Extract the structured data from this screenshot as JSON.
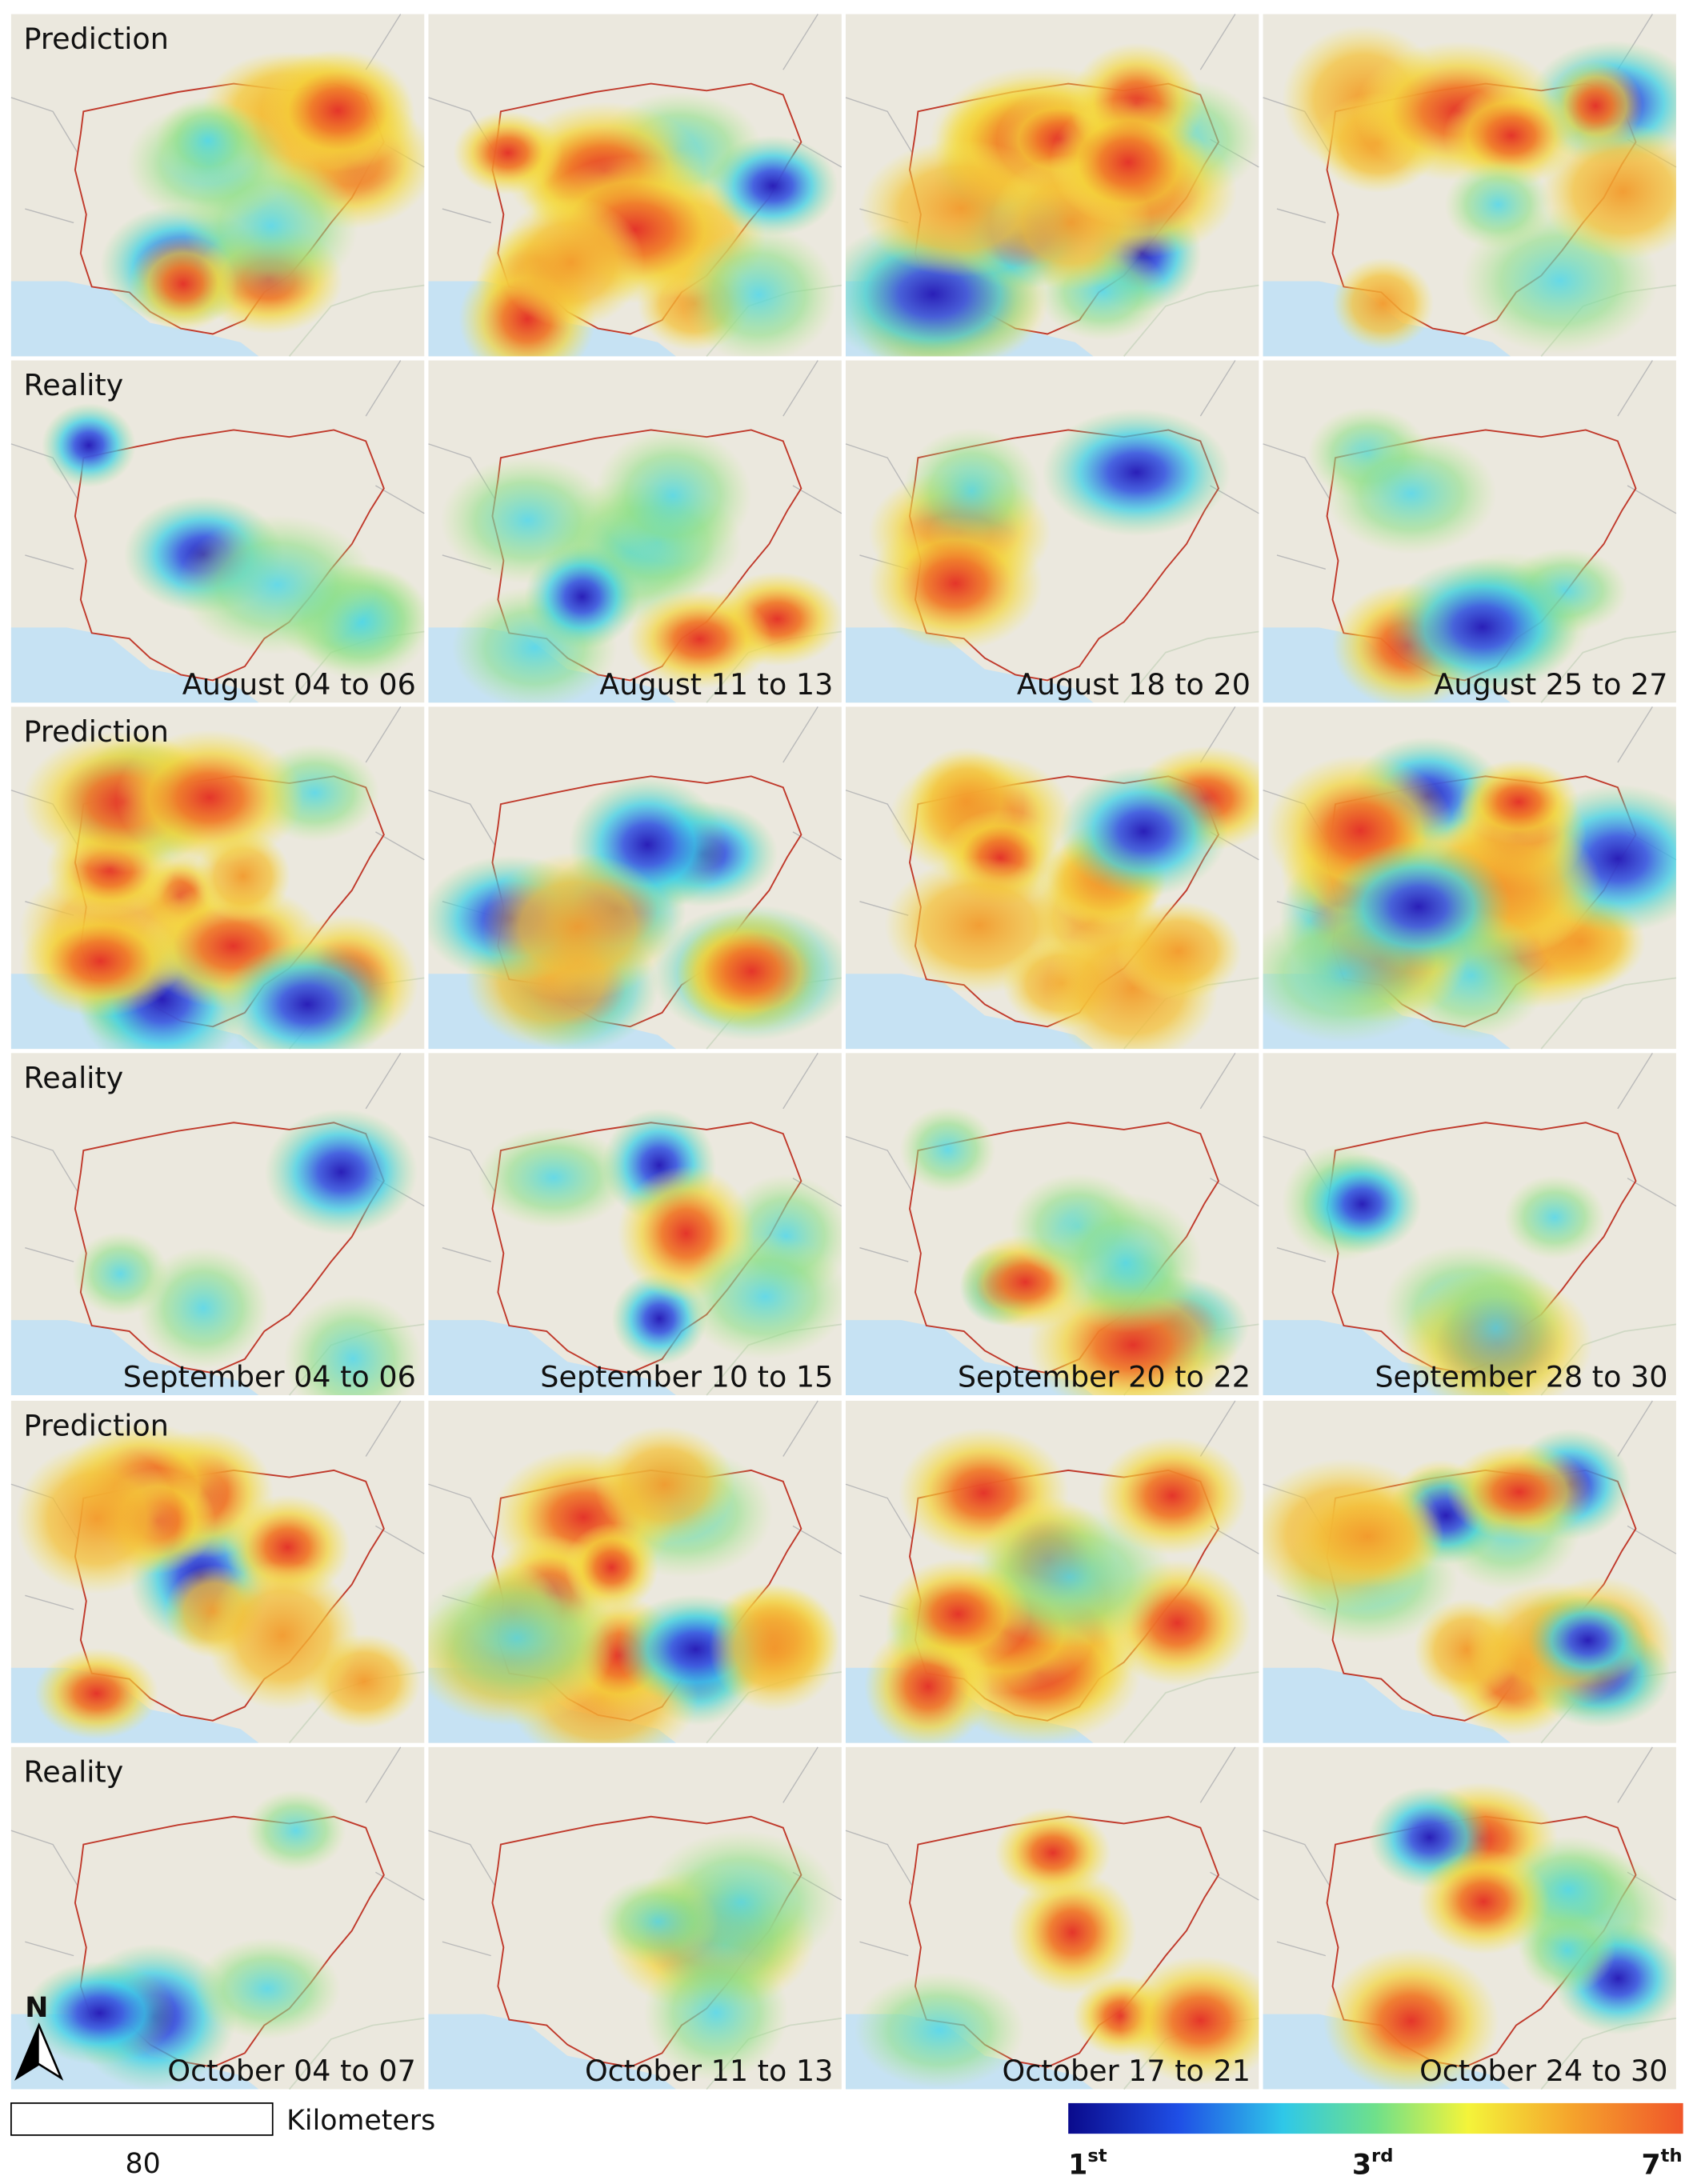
{
  "rows": [
    {
      "label": "Prediction"
    },
    {
      "label": "Reality",
      "dates": [
        "August 04 to 06",
        "August 11 to 13",
        "August 18 to 20",
        "August 25 to 27"
      ]
    },
    {
      "label": "Prediction"
    },
    {
      "label": "Reality",
      "dates": [
        "September 04 to 06",
        "September 10 to 15",
        "September 20 to 22",
        "September 28 to 30"
      ]
    },
    {
      "label": "Prediction"
    },
    {
      "label": "Reality",
      "dates": [
        "October 04 to 07",
        "October 11 to 13",
        "October 17 to 21",
        "October 24 to 30"
      ]
    }
  ],
  "legend": {
    "north": "N",
    "scale_unit": "Kilometers",
    "scale_value": "80",
    "colorbar": [
      {
        "base": "1",
        "sup": "st"
      },
      {
        "base": "3",
        "sup": "rd"
      },
      {
        "base": "7",
        "sup": "th"
      }
    ]
  }
}
